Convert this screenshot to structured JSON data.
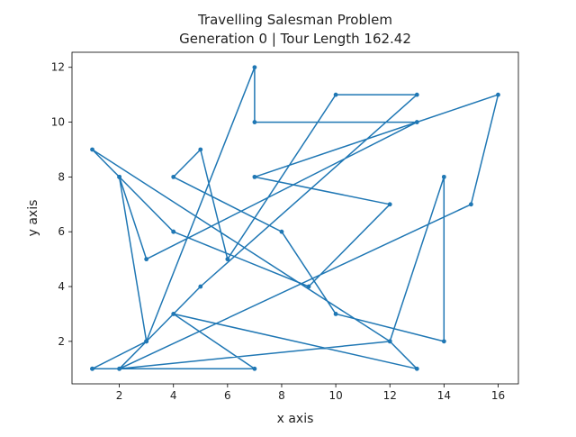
{
  "chart_data": {
    "type": "line",
    "title": "Travelling Salesman Problem",
    "subtitle": "Generation 0 | Tour Length 162.42",
    "xlabel": "x axis",
    "ylabel": "y axis",
    "xlim": [
      0.25,
      16.75
    ],
    "ylim": [
      0.45,
      12.55
    ],
    "xticks": [
      2,
      4,
      6,
      8,
      10,
      12,
      14,
      16
    ],
    "yticks": [
      2,
      4,
      6,
      8,
      10,
      12
    ],
    "grid": false,
    "legend": "none",
    "color": "#1f77b4",
    "series": [
      {
        "points": [
          [
            4,
            6
          ],
          [
            2,
            8
          ],
          [
            1,
            9
          ],
          [
            12,
            2
          ],
          [
            13,
            1
          ],
          [
            4,
            3
          ],
          [
            7,
            1
          ],
          [
            1,
            1
          ],
          [
            3,
            2
          ],
          [
            7,
            12
          ],
          [
            7,
            10
          ],
          [
            13,
            10
          ],
          [
            3,
            5
          ],
          [
            2,
            8
          ],
          [
            3,
            2
          ],
          [
            2,
            1
          ],
          [
            12,
            2
          ],
          [
            14,
            8
          ],
          [
            14,
            2
          ],
          [
            10,
            3
          ],
          [
            8,
            6
          ],
          [
            4,
            8
          ],
          [
            5,
            9
          ],
          [
            6,
            5
          ],
          [
            10,
            11
          ],
          [
            13,
            11
          ],
          [
            5,
            4
          ],
          [
            3,
            2
          ],
          [
            1,
            1
          ],
          [
            2,
            1
          ],
          [
            15,
            7
          ],
          [
            16,
            11
          ],
          [
            7,
            8
          ],
          [
            12,
            7
          ],
          [
            9,
            4
          ],
          [
            4,
            6
          ]
        ]
      }
    ]
  }
}
